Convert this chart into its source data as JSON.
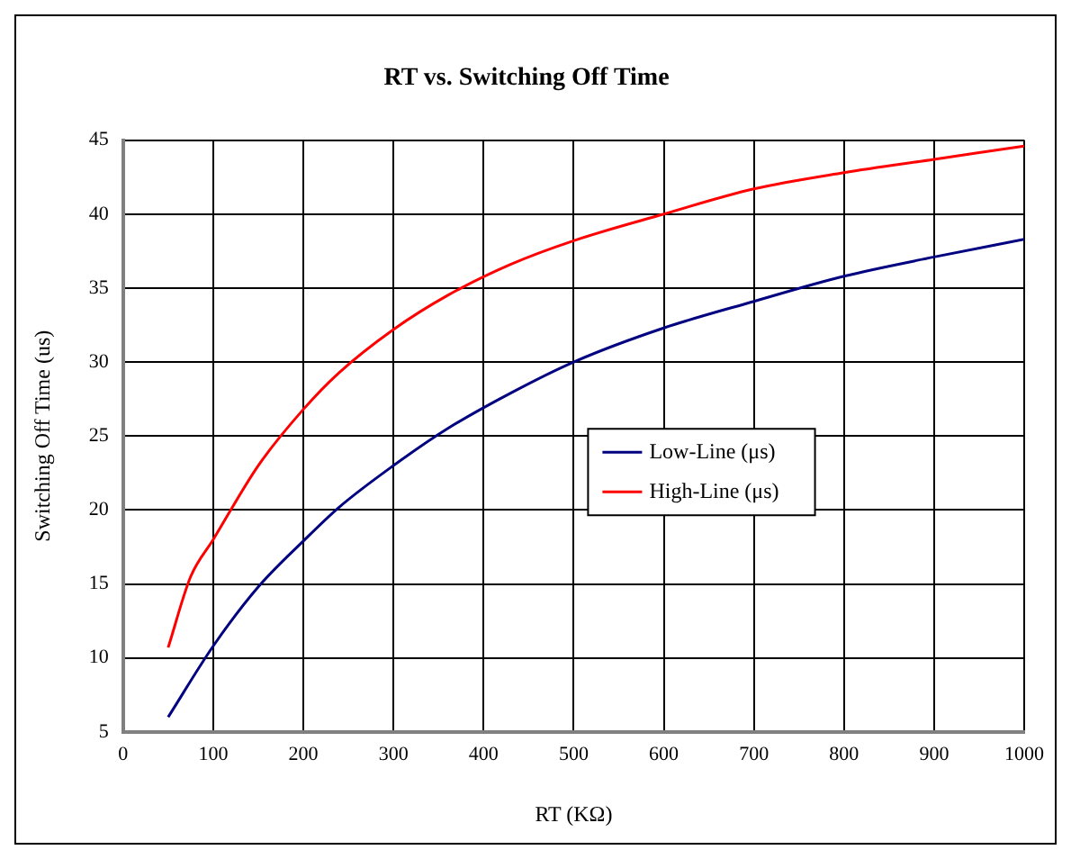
{
  "chart_data": {
    "type": "line",
    "title": "RT vs. Switching Off Time",
    "xlabel": "RT (KΩ)",
    "ylabel": "Switching Off Time (us)",
    "xlim": [
      0,
      1000
    ],
    "xticks": [
      0,
      100,
      200,
      300,
      400,
      500,
      600,
      700,
      800,
      900,
      1000
    ],
    "ylim": [
      5,
      45
    ],
    "yticks": [
      5,
      10,
      15,
      20,
      25,
      30,
      35,
      40,
      45
    ],
    "grid": true,
    "legend": "right",
    "marker": "none",
    "line_style": "solid",
    "series": [
      {
        "name": "Low-Line (μs)",
        "color": "#000080",
        "x": [
          50,
          100,
          150,
          200,
          240,
          300,
          360,
          430,
          500,
          600,
          700,
          800,
          900,
          1000
        ],
        "values": [
          6,
          10.8,
          14.8,
          17.9,
          20.2,
          23,
          25.5,
          27.9,
          30,
          32.3,
          34.1,
          35.8,
          37.1,
          38.3
        ]
      },
      {
        "name": "High-Line (μs)",
        "color": "#ff0000",
        "x": [
          50,
          75,
          100,
          150,
          200,
          240,
          300,
          360,
          430,
          500,
          600,
          700,
          800,
          900,
          1000
        ],
        "values": [
          10.7,
          15.5,
          18,
          23,
          26.8,
          29.3,
          32.2,
          34.5,
          36.6,
          38.2,
          40,
          41.7,
          42.8,
          43.7,
          44.6
        ]
      }
    ]
  }
}
